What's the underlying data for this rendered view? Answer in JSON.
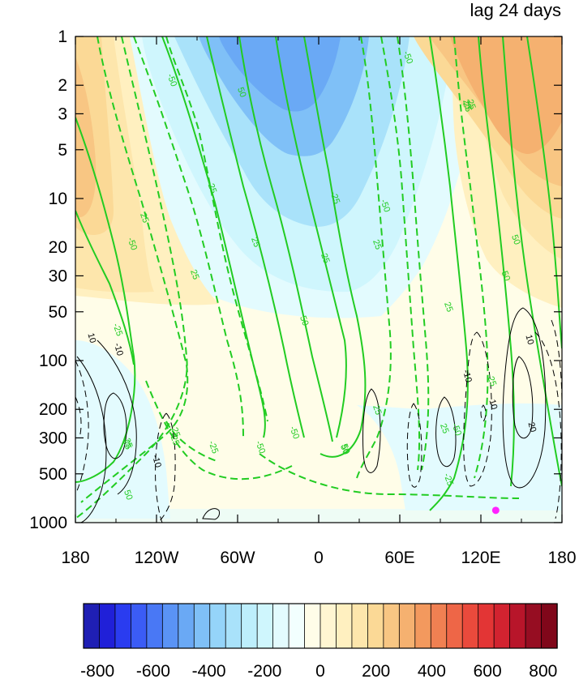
{
  "title_right": "lag 24 days",
  "chart_data": {
    "type": "heatmap",
    "title": "lag 24 days",
    "xlabel": "",
    "ylabel": "",
    "x_ticks": [
      "180",
      "120W",
      "60W",
      "0",
      "60E",
      "120E",
      "180"
    ],
    "x_range": [
      -180,
      180
    ],
    "y_ticks": [
      "1",
      "2",
      "3",
      "5",
      "10",
      "20",
      "30",
      "50",
      "100",
      "200",
      "300",
      "500",
      "1000"
    ],
    "y_tick_values": [
      1,
      2,
      3,
      5,
      10,
      20,
      30,
      50,
      100,
      200,
      300,
      500,
      1000
    ],
    "y_range": [
      1,
      1000
    ],
    "y_scale": "log",
    "y_inverted": true,
    "colorbar": {
      "orientation": "horizontal",
      "min": -850,
      "max": 850,
      "step": 50,
      "tick_labels": [
        "-800",
        "-600",
        "-400",
        "-200",
        "0",
        "200",
        "400",
        "600",
        "800"
      ],
      "tick_values": [
        -800,
        -600,
        -400,
        -200,
        0,
        200,
        400,
        600,
        800
      ],
      "colors": [
        "#1f1fb4",
        "#2020d8",
        "#2a3cf0",
        "#3b5cf5",
        "#4978f5",
        "#5a93f5",
        "#6aa9f5",
        "#7fc0f7",
        "#95d4f9",
        "#a9e2fa",
        "#bdeefc",
        "#cff6fd",
        "#e3fbfe",
        "#f2fffe",
        "#fffde8",
        "#fff6d2",
        "#fff0c0",
        "#fde6ac",
        "#fbd996",
        "#f8c683",
        "#f5b170",
        "#f3995e",
        "#f08052",
        "#ee6647",
        "#ea4a3c",
        "#e33535",
        "#d22330",
        "#b8152a",
        "#960d22",
        "#80071a"
      ]
    },
    "filled_field": {
      "description_units": "data units of shading",
      "regions": [
        {
          "label": "negative",
          "value": -350,
          "lon_center": -20,
          "p_center": 3
        },
        {
          "label": "positive",
          "value": 300,
          "lon_center": 135,
          "p_center": 2
        },
        {
          "label": "positive",
          "value": 200,
          "lon_center": -170,
          "p_center": 5
        }
      ]
    },
    "contour_overlays": [
      {
        "name": "green",
        "color": "#22cc22",
        "levels_labeled": [
          "-50",
          "-25",
          "25",
          "50"
        ],
        "negative_dashed": true
      },
      {
        "name": "black",
        "color": "#000000",
        "levels_labeled": [
          "-10",
          "10",
          "20"
        ],
        "negative_dashed": true
      }
    ],
    "green_contour_labels": [
      "-50",
      "50",
      "25",
      "-25",
      "25",
      "-50",
      "-50",
      "-25",
      "25",
      "25",
      "-50",
      "50",
      "50",
      "25",
      "25",
      "-25",
      "-25",
      "-50",
      "25",
      "-50",
      "-25",
      "25",
      "50",
      "-25",
      "-50",
      "-25",
      "25",
      "50",
      "-25",
      "25",
      "-50",
      "25",
      "50",
      "25",
      "-25"
    ],
    "black_contour_labels": [
      "10",
      "-10",
      "-10",
      "10",
      "20",
      "-10",
      "10"
    ],
    "marker": {
      "lon": 131,
      "p": 900,
      "color": "#ff22ff"
    }
  }
}
